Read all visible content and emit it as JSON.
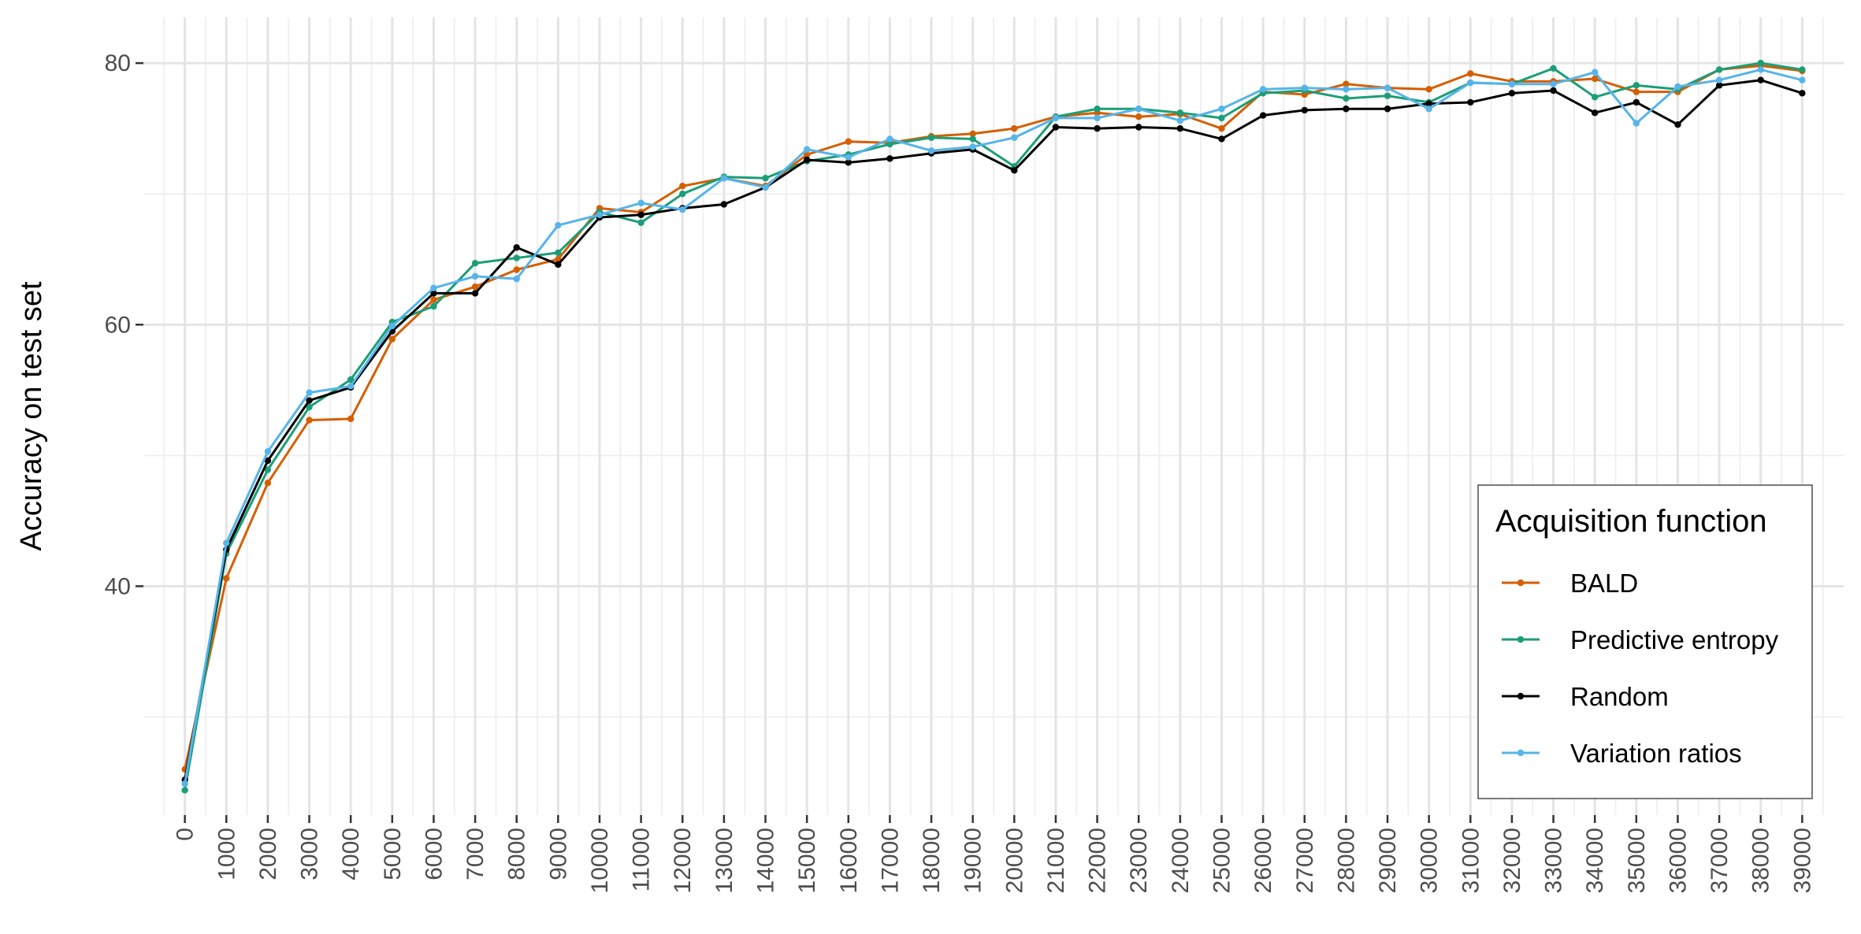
{
  "chart_data": {
    "type": "line",
    "title": "",
    "xlabel": "",
    "ylabel": "Accuracy on test set",
    "ylim": [
      22.5,
      83.5
    ],
    "xlim": [
      -1000,
      40000
    ],
    "y_major_ticks": [
      40,
      60,
      80
    ],
    "y_minor_ticks": [
      30,
      50,
      70
    ],
    "x": [
      0,
      1000,
      2000,
      3000,
      4000,
      5000,
      6000,
      7000,
      8000,
      9000,
      10000,
      11000,
      12000,
      13000,
      14000,
      15000,
      16000,
      17000,
      18000,
      19000,
      20000,
      21000,
      22000,
      23000,
      24000,
      25000,
      26000,
      27000,
      28000,
      29000,
      30000,
      31000,
      32000,
      33000,
      34000,
      35000,
      36000,
      37000,
      38000,
      39000
    ],
    "x_tick_labels": [
      "0",
      "1000",
      "2000",
      "3000",
      "4000",
      "5000",
      "6000",
      "7000",
      "8000",
      "9000",
      "10000",
      "11000",
      "12000",
      "13000",
      "14000",
      "15000",
      "16000",
      "17000",
      "18000",
      "19000",
      "20000",
      "21000",
      "22000",
      "23000",
      "24000",
      "25000",
      "26000",
      "27000",
      "28000",
      "29000",
      "30000",
      "31000",
      "32000",
      "33000",
      "34000",
      "35000",
      "36000",
      "37000",
      "38000",
      "39000"
    ],
    "grid": true,
    "legend": {
      "title": "Acquisition function",
      "placement": "bottom-right"
    },
    "series": [
      {
        "name": "BALD",
        "color": "#d55e00",
        "values": [
          26.0,
          40.6,
          47.9,
          52.7,
          52.8,
          58.9,
          61.9,
          62.9,
          64.2,
          65.0,
          68.9,
          68.6,
          70.6,
          71.2,
          70.6,
          73.0,
          74.0,
          73.9,
          74.4,
          74.6,
          75.0,
          75.9,
          76.2,
          75.9,
          76.1,
          75.0,
          77.8,
          77.6,
          78.4,
          78.1,
          78.0,
          79.2,
          78.6,
          78.6,
          78.8,
          77.8,
          77.8,
          79.5,
          79.8,
          79.4
        ]
      },
      {
        "name": "Predictive entropy",
        "color": "#1b9e77",
        "values": [
          24.4,
          42.5,
          48.9,
          53.7,
          55.8,
          60.2,
          61.4,
          64.7,
          65.1,
          65.5,
          68.6,
          67.8,
          70.0,
          71.3,
          71.2,
          72.5,
          73.0,
          73.8,
          74.3,
          74.2,
          72.1,
          75.9,
          76.5,
          76.5,
          76.2,
          75.8,
          77.7,
          77.9,
          77.3,
          77.5,
          77.0,
          78.5,
          78.4,
          79.6,
          77.4,
          78.3,
          78.0,
          79.5,
          80.0,
          79.5
        ]
      },
      {
        "name": "Random",
        "color": "#000000",
        "values": [
          25.2,
          42.8,
          49.6,
          54.2,
          55.2,
          59.5,
          62.4,
          62.4,
          65.9,
          64.6,
          68.2,
          68.4,
          68.9,
          69.2,
          70.5,
          72.6,
          72.4,
          72.7,
          73.1,
          73.4,
          71.8,
          75.1,
          75.0,
          75.1,
          75.0,
          74.2,
          76.0,
          76.4,
          76.5,
          76.5,
          76.9,
          77.0,
          77.7,
          77.9,
          76.2,
          77.0,
          75.3,
          78.3,
          78.7,
          77.7
        ]
      },
      {
        "name": "Variation ratios",
        "color": "#56b4e9",
        "values": [
          24.9,
          43.3,
          50.3,
          54.8,
          55.3,
          59.9,
          62.8,
          63.7,
          63.5,
          67.6,
          68.4,
          69.3,
          68.8,
          71.2,
          70.5,
          73.4,
          72.8,
          74.2,
          73.3,
          73.6,
          74.3,
          75.8,
          75.8,
          76.5,
          75.6,
          76.5,
          78.0,
          78.1,
          78.0,
          78.1,
          76.5,
          78.5,
          78.4,
          78.4,
          79.3,
          75.4,
          78.2,
          78.7,
          79.5,
          78.7
        ]
      }
    ]
  }
}
